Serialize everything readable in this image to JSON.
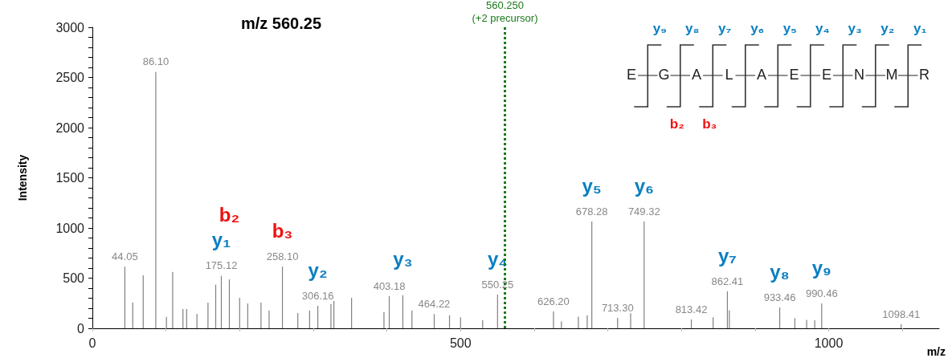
{
  "chart_data": {
    "type": "bar",
    "title": "m/z 560.25",
    "xlabel": "m/z",
    "ylabel": "Intensity",
    "x": [
      44.05,
      54.8,
      69,
      86.1,
      100.6,
      109,
      123,
      128,
      142,
      157,
      167.5,
      175.12,
      186,
      200,
      211,
      229,
      240,
      258.1,
      279,
      295,
      306.16,
      324,
      328,
      352,
      396,
      403.18,
      421.6,
      434,
      464.22,
      485,
      500,
      530,
      550.25,
      560.25,
      626.2,
      637,
      660,
      672,
      678.28,
      713.3,
      731,
      749.32,
      813.42,
      843,
      862.41,
      865,
      933.46,
      954,
      970,
      981,
      990.46,
      1098.41
    ],
    "series": [
      {
        "color": "#808080",
        "values": [
          615,
          256,
          528,
          2554,
          115,
          562,
          192,
          192,
          144,
          256,
          435,
          523,
          488,
          304,
          248,
          256,
          176,
          615,
          152,
          176,
          224,
          242,
          272,
          304,
          160,
          320,
          330,
          176,
          142,
          130,
          110,
          80,
          336,
          null,
          168,
          70,
          117,
          130,
          1064,
          104,
          150,
          1064,
          88,
          110,
          368,
          180,
          208,
          100,
          85,
          80,
          248,
          40
        ]
      }
    ],
    "xlim": [
      0,
      1150
    ],
    "xticks": [
      0,
      {
        "value": 100,
        "label": null
      },
      {
        "value": 200,
        "label": null
      },
      {
        "value": 300,
        "label": null
      },
      {
        "value": 400,
        "label": null
      },
      500,
      {
        "value": 600,
        "label": null
      },
      {
        "value": 700,
        "label": null
      },
      {
        "value": 800,
        "label": null
      },
      {
        "value": 900,
        "label": null
      },
      1000,
      {
        "value": 1100,
        "label": null
      }
    ],
    "ylim": [
      0,
      3000
    ],
    "yticks": [
      0,
      {
        "value": 100,
        "label": null
      },
      {
        "value": 200,
        "label": null
      },
      {
        "value": 300,
        "label": null
      },
      {
        "value": 400,
        "label": null
      },
      500,
      {
        "value": 600,
        "label": null
      },
      {
        "value": 700,
        "label": null
      },
      {
        "value": 800,
        "label": null
      },
      {
        "value": 900,
        "label": null
      },
      1000,
      {
        "value": 1100,
        "label": null
      },
      {
        "value": 1200,
        "label": null
      },
      {
        "value": 1300,
        "label": null
      },
      {
        "value": 1400,
        "label": null
      },
      1500,
      {
        "value": 1600,
        "label": null
      },
      {
        "value": 1700,
        "label": null
      },
      {
        "value": 1800,
        "label": null
      },
      {
        "value": 1900,
        "label": null
      },
      2000,
      {
        "value": 2100,
        "label": null
      },
      {
        "value": 2200,
        "label": null
      },
      {
        "value": 2300,
        "label": null
      },
      {
        "value": 2400,
        "label": null
      },
      2500,
      {
        "value": 2600,
        "label": null
      },
      {
        "value": 2700,
        "label": null
      },
      {
        "value": 2800,
        "label": null
      },
      {
        "value": 2900,
        "label": null
      },
      3000
    ],
    "ref_lines": [
      {
        "axis": "x",
        "value": 560.25,
        "label": "560.250\n(+2 precursor)",
        "color": "#1a7a1a",
        "line_style": "dotted"
      }
    ],
    "annotations": [
      "y₉ y₈ y₇ y₆ y₅ y₄ y₃ y₂ y₁",
      "b₂ b₃",
      "E",
      "G",
      "A",
      "L",
      "A",
      "E",
      "E",
      "N",
      "M",
      "R",
      {
        "text": "44.05",
        "x": 44.05,
        "y": 615
      },
      {
        "text": "86.10",
        "x": 86.1,
        "y": 2554
      },
      {
        "text": "175.12",
        "x": 175.12,
        "y": 523
      },
      {
        "text": "258.10",
        "x": 258.1,
        "y": 615
      },
      {
        "text": "306.16",
        "x": 306.16,
        "y": 224
      },
      {
        "text": "403.18",
        "x": 403.18,
        "y": 320
      },
      {
        "text": "464.22",
        "x": 464.22,
        "y": 142
      },
      {
        "text": "550.25",
        "x": 550.25,
        "y": 336
      },
      {
        "text": "626.20",
        "x": 626.2,
        "y": 168
      },
      {
        "text": "678.28",
        "x": 678.28,
        "y": 1064
      },
      {
        "text": "713.30",
        "x": 713.3,
        "y": 104
      },
      {
        "text": "749.32",
        "x": 749.32,
        "y": 1064
      },
      {
        "text": "813.42",
        "x": 813.42,
        "y": 88
      },
      {
        "text": "862.41",
        "x": 862.41,
        "y": 368
      },
      {
        "text": "933.46",
        "x": 933.46,
        "y": 208
      },
      {
        "text": "990.46",
        "x": 990.46,
        "y": 248
      },
      {
        "text": "1098.41",
        "x": 1098.41,
        "y": 40
      },
      {
        "text": "y₁",
        "x": 175.12,
        "y": 523
      },
      {
        "text": "b₂",
        "x": 186,
        "y": 488
      },
      {
        "text": "b₃",
        "x": 258.1,
        "y": 615
      },
      {
        "text": "y₂",
        "x": 306.16,
        "y": 224
      },
      {
        "text": "y₃",
        "x": 421.6,
        "y": 330
      },
      {
        "text": "y₄",
        "x": 550.25,
        "y": 336
      },
      {
        "text": "y₅",
        "x": 678.28,
        "y": 1064
      },
      {
        "text": "y₆",
        "x": 749.32,
        "y": 1064
      },
      {
        "text": "y₇",
        "x": 862.41,
        "y": 368
      },
      {
        "text": "y₈",
        "x": 933.46,
        "y": 208
      },
      {
        "text": "y₉",
        "x": 990.46,
        "y": 248
      }
    ],
    "grid": false
  }
}
